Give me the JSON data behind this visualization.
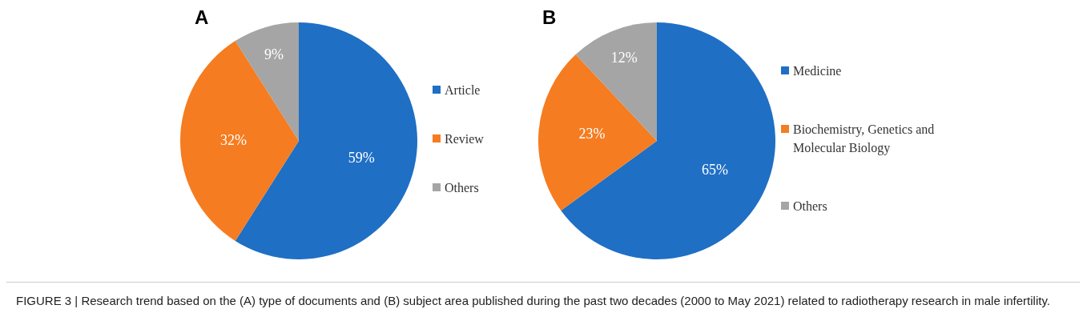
{
  "chart_data": [
    {
      "type": "pie",
      "title": "A",
      "categories": [
        "Article",
        "Review",
        "Others"
      ],
      "values": [
        59,
        32,
        9
      ],
      "colors": [
        "#1f6fc5",
        "#f57c20",
        "#a5a5a5"
      ],
      "data_labels": true,
      "value_labels": [
        "59%",
        "32%",
        "9%"
      ],
      "legend": "right"
    },
    {
      "type": "pie",
      "title": "B",
      "categories": [
        "Medicine",
        "Biochemistry, Genetics and Molecular Biology",
        "Others"
      ],
      "values": [
        65,
        23,
        12
      ],
      "colors": [
        "#1f6fc5",
        "#f57c20",
        "#a5a5a5"
      ],
      "data_labels": true,
      "value_labels": [
        "65%",
        "23%",
        "12%"
      ],
      "legend": "right",
      "annotations": [
        "FIGURE 3 | Research trend based on the (A) type of documents and (B) subject area published during the past two decades (2000 to May 2021) related to radiotherapy research in male infertility."
      ]
    }
  ]
}
